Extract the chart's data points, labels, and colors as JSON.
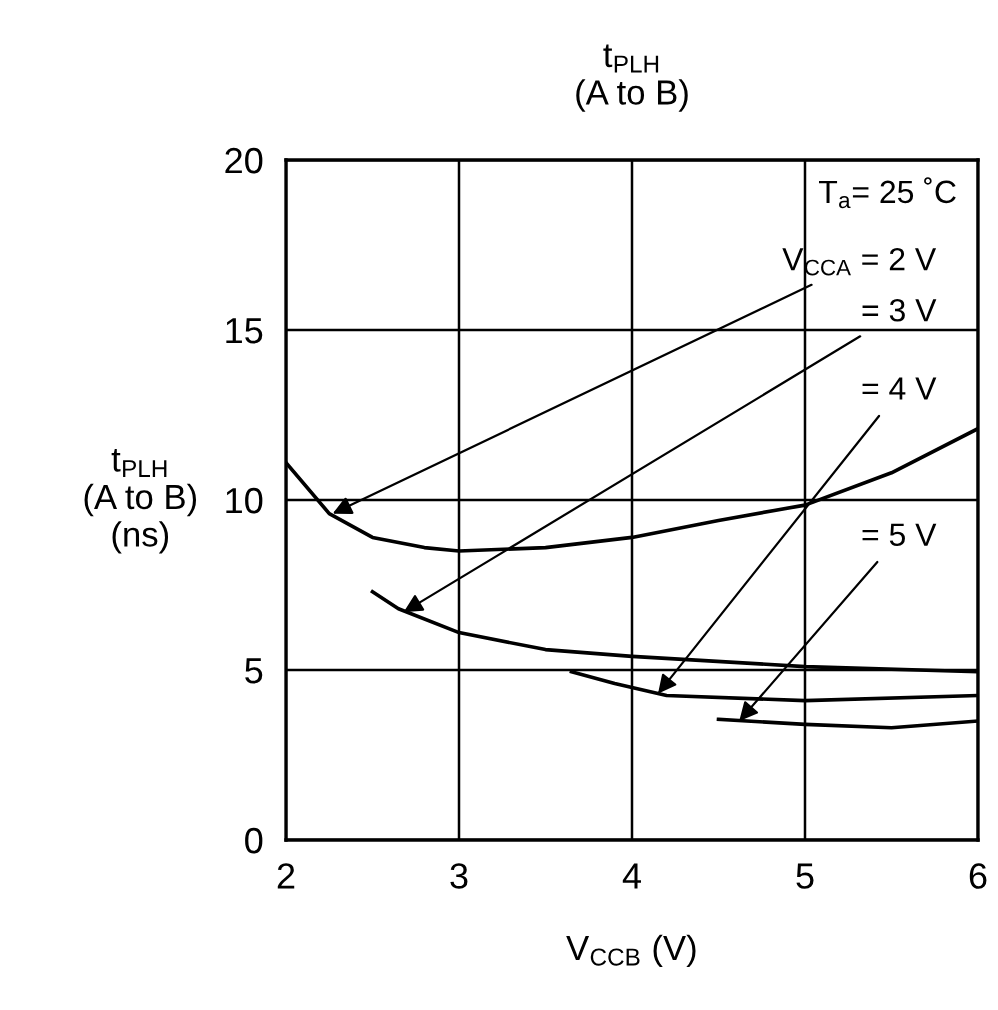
{
  "chart_data": {
    "type": "line",
    "title": "t$_{PLH}$\n(A to B)",
    "xlabel": "V$_{CCB}$ (V)",
    "ylabel": "t$_{PLH}$\n(A to B)\n(ns)",
    "series": [
      {
        "color": "#000000",
        "x": [
          2,
          2.25,
          2.5,
          2.8,
          3,
          3.5,
          4,
          4.5,
          5,
          5.5,
          6
        ],
        "values": [
          11.1,
          9.6,
          8.9,
          8.6,
          8.5,
          8.6,
          8.9,
          9.4,
          9.85,
          10.8,
          12.1
        ]
      },
      {
        "color": "#000000",
        "x": [
          2.5,
          2.65,
          3,
          3.5,
          4,
          5,
          6
        ],
        "values": [
          7.3,
          6.8,
          6.1,
          5.6,
          5.4,
          5.1,
          4.95
        ]
      },
      {
        "color": "#000000",
        "x": [
          3.65,
          3.9,
          4.2,
          5,
          6
        ],
        "values": [
          4.95,
          4.6,
          4.25,
          4.1,
          4.25
        ]
      },
      {
        "color": "#000000",
        "x": [
          4.5,
          5,
          5.5,
          6
        ],
        "values": [
          3.55,
          3.4,
          3.3,
          3.5
        ]
      }
    ],
    "annotations": [
      "T$_{a}$= 25 ˚C",
      {
        "text": "V$_{CCA}$ = 2 V",
        "x": 2.27,
        "y": 9.6
      },
      {
        "text": "= 3 V",
        "x": 2.68,
        "y": 6.7
      },
      {
        "text": "= 4 V",
        "x": 4.15,
        "y": 4.3
      },
      {
        "text": "= 5 V",
        "x": 4.62,
        "y": 3.5
      }
    ],
    "xlim": [
      2,
      6
    ],
    "ylim": [
      0,
      20
    ],
    "xticks": [
      2,
      3,
      4,
      5,
      6
    ],
    "yticks": [
      0,
      5,
      10,
      15,
      20
    ],
    "grid": true,
    "marker": "none",
    "line_style": "solid"
  }
}
